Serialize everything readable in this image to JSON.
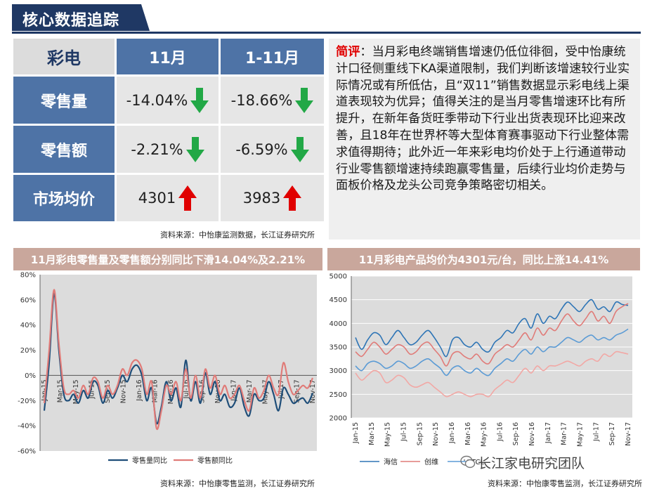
{
  "header": {
    "title": "核心数据追踪"
  },
  "table": {
    "corner": "彩电",
    "columns": [
      "11月",
      "1-11月"
    ],
    "rows": [
      {
        "label": "零售量",
        "values": [
          "-14.04%",
          "-18.66%"
        ],
        "dirs": [
          "down",
          "down"
        ]
      },
      {
        "label": "零售额",
        "values": [
          "-2.21%",
          "-6.59%"
        ],
        "dirs": [
          "down",
          "down"
        ]
      },
      {
        "label": "市场均价",
        "values": [
          "4301",
          "3983"
        ],
        "dirs": [
          "up",
          "up"
        ]
      }
    ],
    "source": "资料来源：中怡康监测数据，长江证券研究所"
  },
  "comment": {
    "lead": "简评",
    "body": "：当月彩电终端销售增速仍低位徘徊，受中怡康统计口径侧重线下KA渠道限制，我们判断该增速较行业实际情况或有所低估，且“双11”销售数据显示彩电线上渠道表现较为优异；值得关注的是当月零售增速环比有所提升，在新年备货旺季带动下行业出货表现环比迎来改善，且18年在世界杯等大型体育赛事驱动下行业整体需求值得期待；此外近一年来彩电均价处于上行通道带动行业零售额增速持续跑赢零售量，后续行业均价走势与面板价格及龙头公司竞争策略密切相关。"
  },
  "colors": {
    "navy": "#1f3864",
    "blue_cell": "#4e73a6",
    "down_arrow": "#22a846",
    "up_arrow": "#e00000",
    "title_bar": "#c9a79c"
  },
  "chart_left": {
    "title": "11月彩电零售量及零售额分别同比下滑14.04%及2.21%",
    "source": "资料来源：中怡康零售监测，长江证券研究所"
  },
  "chart_right": {
    "title": "11月彩电产品均价为4301元/台，同比上涨14.41%",
    "source": "资料来源：中怡康零售监测，长江证券研究所"
  },
  "watermark": "长江家电研究团队",
  "chart_data": [
    {
      "type": "line",
      "title": "11月彩电零售量及零售额分别同比下滑14.04%及2.21%",
      "ylim": [
        -60,
        80
      ],
      "yticks": [
        "80%",
        "60%",
        "40%",
        "20%",
        "0%",
        "-20%",
        "-40%",
        "-60%"
      ],
      "x_tick_labels": [
        "Jan-15",
        "Mar-15",
        "May-15",
        "Jul-15",
        "Sep-15",
        "Nov-15",
        "Jan-16",
        "Mar-16",
        "May-16",
        "Jul-16",
        "Sep-16",
        "Nov-16",
        "Jan-17",
        "Mar-17",
        "May-17",
        "Jul-17",
        "Sep-17",
        "Nov-17"
      ],
      "grid": false,
      "legend": "bottom",
      "series": [
        {
          "name": "零售量同比",
          "color": "#1f4e79",
          "values": [
            -28,
            10,
            65,
            20,
            -15,
            -20,
            -15,
            -22,
            -12,
            -18,
            -5,
            -8,
            -22,
            -12,
            -18,
            -10,
            0,
            -5,
            5,
            8,
            0,
            -20,
            -10,
            -38,
            -25,
            -5,
            -20,
            -10,
            -25,
            12,
            -20,
            -5,
            -22,
            2,
            -15,
            -5,
            -20,
            -15,
            -25,
            -22,
            -10,
            -25,
            -32,
            -15,
            -20,
            -18,
            -5,
            -15,
            -28,
            -10,
            -15,
            -22,
            -20,
            -18,
            -22,
            -14
          ]
        },
        {
          "name": "零售额同比",
          "color": "#e07b78",
          "values": [
            -22,
            20,
            68,
            25,
            -10,
            -15,
            -12,
            -18,
            -8,
            -15,
            -2,
            -5,
            -18,
            -8,
            -15,
            -8,
            5,
            0,
            10,
            12,
            5,
            -15,
            -5,
            -42,
            -28,
            -8,
            -15,
            -5,
            -20,
            5,
            -18,
            0,
            -18,
            5,
            -10,
            0,
            -15,
            -8,
            -18,
            -15,
            -8,
            -20,
            -28,
            -10,
            -18,
            -12,
            0,
            -10,
            -15,
            10,
            -5,
            -15,
            -12,
            -8,
            -10,
            -2
          ]
        }
      ]
    },
    {
      "type": "line",
      "title": "11月彩电产品均价为4301元/台，同比上涨14.41%",
      "ylim": [
        2000,
        5000
      ],
      "yticks": [
        "5000",
        "4500",
        "4000",
        "3500",
        "3000",
        "2500",
        "2000"
      ],
      "x_tick_labels": [
        "Jan-15",
        "Mar-15",
        "May-15",
        "Jul-15",
        "Sep-15",
        "Nov-15",
        "Jan-16",
        "Mar-16",
        "May-16",
        "Jul-16",
        "Sep-16",
        "Nov-16",
        "Jan-17",
        "Mar-17",
        "May-17",
        "Jul-17",
        "Sep-17",
        "Nov-17"
      ],
      "grid": true,
      "legend": "bottom",
      "series": [
        {
          "name": "海信",
          "color": "#2e75b6",
          "values": [
            3700,
            3450,
            3650,
            3800,
            3750,
            3550,
            3700,
            3850,
            3700,
            3550,
            3600,
            3750,
            3850,
            3700,
            3500,
            3300,
            3650,
            3700,
            3550,
            3500,
            3600,
            3450,
            3400,
            3600,
            3700,
            3850,
            3800,
            4000,
            4100,
            3900,
            4200,
            4000,
            4150,
            4100,
            4300,
            4450,
            4350,
            4250,
            4400,
            4500,
            4300,
            4350,
            4250,
            4450,
            4400,
            4380
          ]
        },
        {
          "name": "创维",
          "color": "#e07b78",
          "values": [
            3400,
            3300,
            3450,
            3600,
            3500,
            3350,
            3450,
            3550,
            3500,
            3350,
            3400,
            3550,
            3600,
            3450,
            3300,
            3100,
            3350,
            3400,
            3300,
            3250,
            3350,
            3200,
            3150,
            3350,
            3450,
            3550,
            3500,
            3650,
            3800,
            3650,
            3900,
            3750,
            3900,
            3850,
            4050,
            4200,
            4050,
            3950,
            4100,
            4250,
            4050,
            4150,
            4000,
            4250,
            4350,
            4420
          ]
        },
        {
          "name": "TCL",
          "color": "#5b9bd5",
          "values": [
            3100,
            3000,
            3150,
            3200,
            3150,
            3050,
            3100,
            3200,
            3150,
            3050,
            3100,
            3200,
            3250,
            3150,
            3050,
            2900,
            3050,
            3100,
            3000,
            2950,
            3050,
            2950,
            2900,
            3050,
            3150,
            3250,
            3200,
            3350,
            3450,
            3350,
            3500,
            3400,
            3500,
            3500,
            3600,
            3700,
            3650,
            3600,
            3700,
            3750,
            3650,
            3700,
            3650,
            3750,
            3800,
            3880
          ]
        },
        {
          "name": "",
          "color": "#f2a7a4",
          "values": [
            2950,
            2800,
            2900,
            3000,
            2950,
            2750,
            2800,
            2900,
            2850,
            2700,
            2650,
            2700,
            2750,
            2650,
            2550,
            2450,
            2500,
            2550,
            2500,
            2450,
            2500,
            2500,
            2450,
            2600,
            2700,
            2800,
            2750,
            2900,
            3050,
            2950,
            3100,
            3000,
            3100,
            3100,
            3150,
            3200,
            3150,
            3100,
            3200,
            3250,
            3200,
            3350,
            3300,
            3400,
            3380,
            3350
          ]
        }
      ]
    }
  ]
}
